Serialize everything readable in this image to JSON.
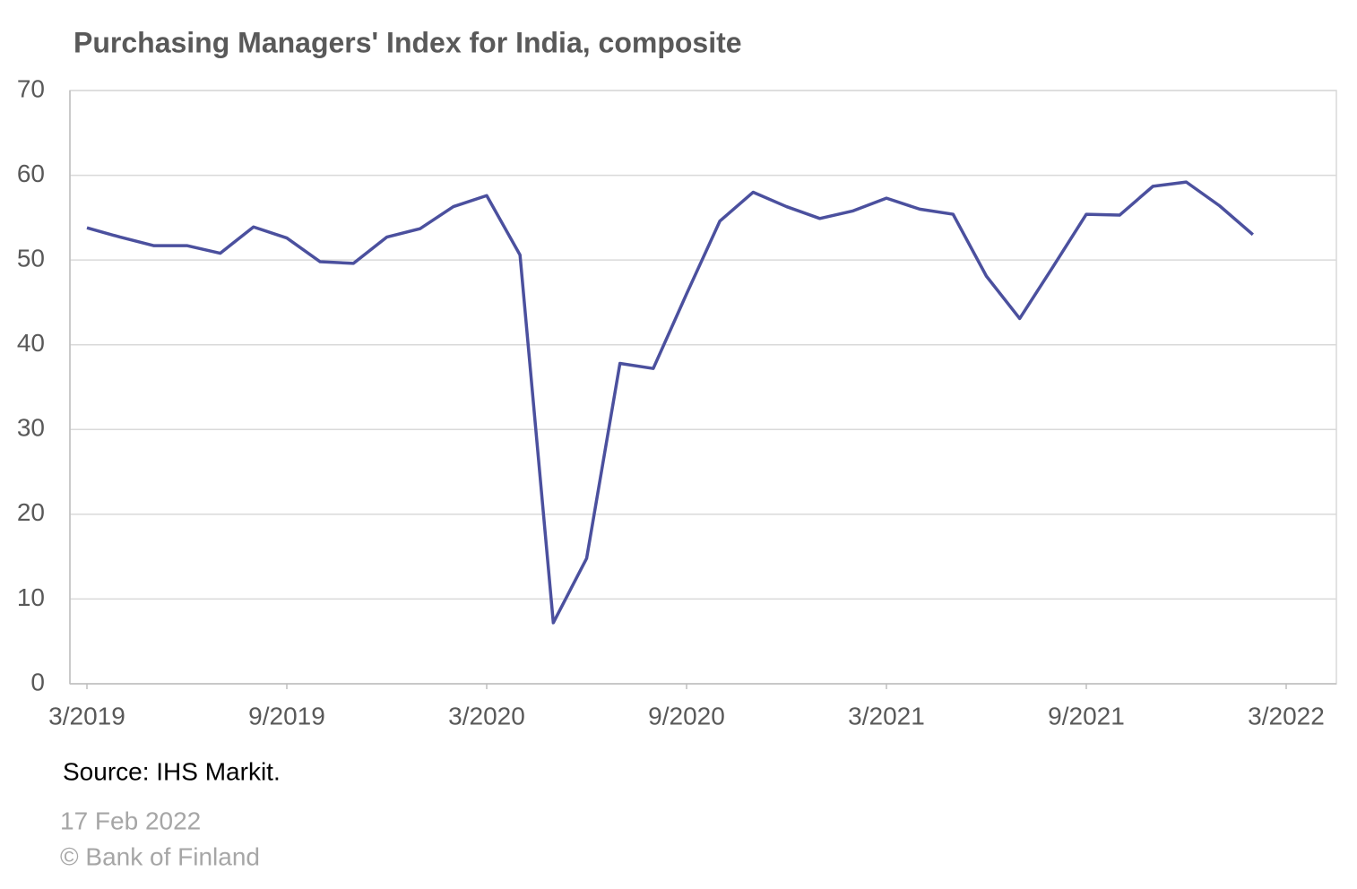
{
  "chart_data": {
    "type": "line",
    "title": "Purchasing Managers' Index for India, composite",
    "x": [
      "2019-03",
      "2019-04",
      "2019-05",
      "2019-06",
      "2019-07",
      "2019-08",
      "2019-09",
      "2019-10",
      "2019-11",
      "2019-12",
      "2020-01",
      "2020-02",
      "2020-03",
      "2020-04",
      "2020-05",
      "2020-06",
      "2020-07",
      "2020-08",
      "2020-09",
      "2020-10",
      "2020-11",
      "2020-12",
      "2021-01",
      "2021-02",
      "2021-03",
      "2021-04",
      "2021-05",
      "2021-06",
      "2021-07",
      "2021-08",
      "2021-09",
      "2021-10",
      "2021-11",
      "2021-12",
      "2022-01",
      "2022-02"
    ],
    "series": [
      {
        "name": "PMI composite",
        "color": "#4b509e",
        "values": [
          53.8,
          52.7,
          51.7,
          51.7,
          50.8,
          53.9,
          52.6,
          49.8,
          49.6,
          52.7,
          53.7,
          56.3,
          57.6,
          50.6,
          7.2,
          14.8,
          37.8,
          37.2,
          46.0,
          54.6,
          58.0,
          56.3,
          54.9,
          55.8,
          57.3,
          56.0,
          55.4,
          48.1,
          43.1,
          49.2,
          55.4,
          55.3,
          58.7,
          59.2,
          56.4,
          53.0
        ]
      }
    ],
    "xlim": [
      "2019-03",
      "2022-03"
    ],
    "xticks": [
      {
        "value": "2019-03",
        "label": "3/2019"
      },
      {
        "value": "2019-09",
        "label": "9/2019"
      },
      {
        "value": "2020-03",
        "label": "3/2020"
      },
      {
        "value": "2020-09",
        "label": "9/2020"
      },
      {
        "value": "2021-03",
        "label": "3/2021"
      },
      {
        "value": "2021-09",
        "label": "9/2021"
      },
      {
        "value": "2022-03",
        "label": "3/2022"
      }
    ],
    "ylim": [
      0,
      70
    ],
    "yticks": [
      0,
      10,
      20,
      30,
      40,
      50,
      60,
      70
    ],
    "grid": true,
    "source": "Source: IHS Markit.",
    "date": "17 Feb 2022",
    "copyright": "© Bank of Finland"
  }
}
